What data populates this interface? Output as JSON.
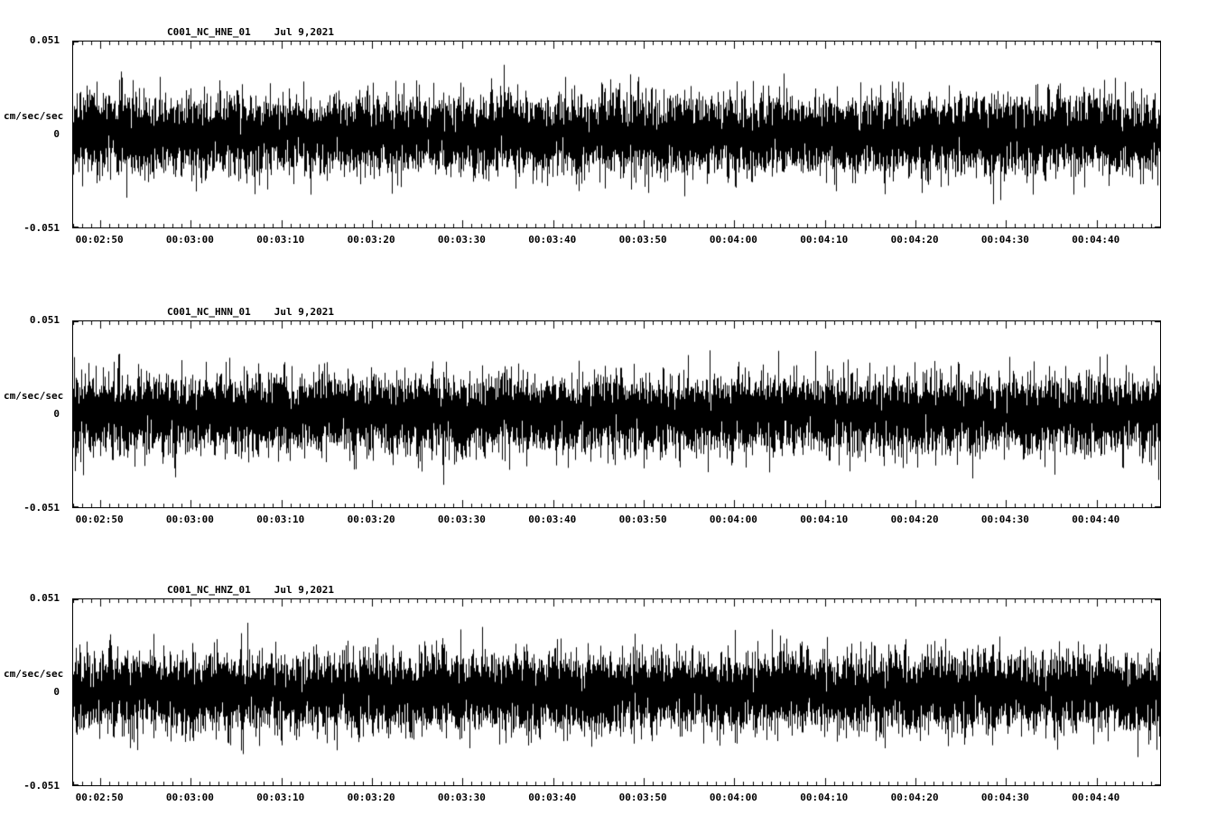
{
  "page": {
    "background": "#ffffff",
    "text_color": "#000000"
  },
  "chart_data": [
    {
      "type": "line",
      "subtype": "seismogram-waveform",
      "title": "C001_NC_HNE_01",
      "date_label": "Jul 9,2021",
      "ylabel": "cm/sec/sec",
      "ylim": [
        -0.051,
        0.051
      ],
      "ytick_labels": [
        "0.051",
        "0",
        "-0.051"
      ],
      "xtick_labels": [
        "00:02:50",
        "00:03:00",
        "00:03:10",
        "00:03:20",
        "00:03:30",
        "00:03:40",
        "00:03:50",
        "00:04:00",
        "00:04:10",
        "00:04:20",
        "00:04:30",
        "00:04:40"
      ],
      "x_axis": {
        "span_seconds": 120,
        "first_tick_offset_seconds": 3,
        "major_interval_seconds": 10,
        "minor_interval_seconds": 1
      },
      "line_color": "#000000",
      "grid": false,
      "legend": false,
      "signal": {
        "kind": "random-noise",
        "mean": 0,
        "sigma": 0.01,
        "samples_per_column": 10,
        "peak_amplitude": 0.05,
        "seed": 11
      }
    },
    {
      "type": "line",
      "subtype": "seismogram-waveform",
      "title": "C001_NC_HNN_01",
      "date_label": "Jul 9,2021",
      "ylabel": "cm/sec/sec",
      "ylim": [
        -0.051,
        0.051
      ],
      "ytick_labels": [
        "0.051",
        "0",
        "-0.051"
      ],
      "xtick_labels": [
        "00:02:50",
        "00:03:00",
        "00:03:10",
        "00:03:20",
        "00:03:30",
        "00:03:40",
        "00:03:50",
        "00:04:00",
        "00:04:10",
        "00:04:20",
        "00:04:30",
        "00:04:40"
      ],
      "x_axis": {
        "span_seconds": 120,
        "first_tick_offset_seconds": 3,
        "major_interval_seconds": 10,
        "minor_interval_seconds": 1
      },
      "line_color": "#000000",
      "grid": false,
      "legend": false,
      "signal": {
        "kind": "random-noise",
        "mean": 0,
        "sigma": 0.01,
        "samples_per_column": 10,
        "peak_amplitude": 0.05,
        "seed": 22
      }
    },
    {
      "type": "line",
      "subtype": "seismogram-waveform",
      "title": "C001_NC_HNZ_01",
      "date_label": "Jul 9,2021",
      "ylabel": "cm/sec/sec",
      "ylim": [
        -0.051,
        0.051
      ],
      "ytick_labels": [
        "0.051",
        "0",
        "-0.051"
      ],
      "xtick_labels": [
        "00:02:50",
        "00:03:00",
        "00:03:10",
        "00:03:20",
        "00:03:30",
        "00:03:40",
        "00:03:50",
        "00:04:00",
        "00:04:10",
        "00:04:20",
        "00:04:30",
        "00:04:40"
      ],
      "x_axis": {
        "span_seconds": 120,
        "first_tick_offset_seconds": 3,
        "major_interval_seconds": 10,
        "minor_interval_seconds": 1
      },
      "line_color": "#000000",
      "grid": false,
      "legend": false,
      "signal": {
        "kind": "random-noise",
        "mean": 0,
        "sigma": 0.01,
        "samples_per_column": 10,
        "peak_amplitude": 0.05,
        "seed": 33
      }
    }
  ]
}
